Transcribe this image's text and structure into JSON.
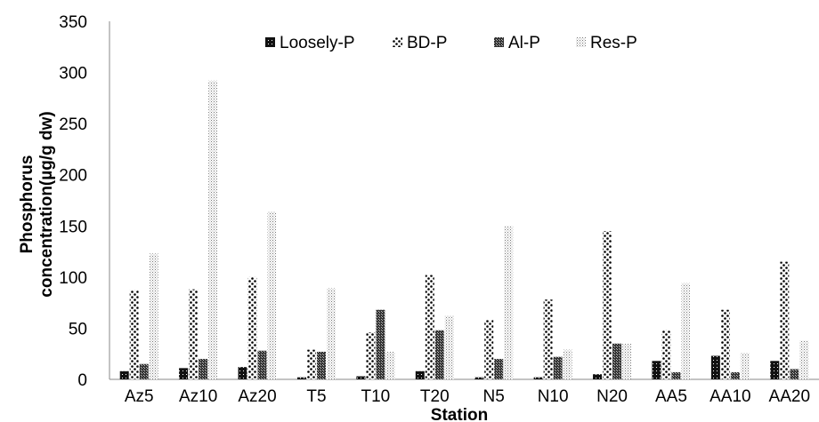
{
  "chart_data": {
    "type": "bar",
    "title": "",
    "xlabel": "Station",
    "ylabel_lines": [
      "Phosphorus",
      "concentration(µg/g dw)"
    ],
    "ylim": [
      0,
      350
    ],
    "yticks": [
      0,
      50,
      100,
      150,
      200,
      250,
      300,
      350
    ],
    "grid": false,
    "legend_position": "top",
    "categories": [
      "Az5",
      "Az10",
      "Az20",
      "T5",
      "T10",
      "T20",
      "N5",
      "N10",
      "N20",
      "AA5",
      "AA10",
      "AA20"
    ],
    "series": [
      {
        "name": "Loosely-P",
        "pattern": "dense-black",
        "values": [
          8,
          11,
          12,
          2,
          3,
          8,
          2,
          2,
          5,
          18,
          23,
          18
        ]
      },
      {
        "name": "BD-P",
        "pattern": "coarse-dots",
        "values": [
          87,
          88,
          100,
          29,
          46,
          102,
          58,
          78,
          145,
          48,
          68,
          115
        ]
      },
      {
        "name": "Al-P",
        "pattern": "checker",
        "values": [
          15,
          20,
          28,
          27,
          68,
          48,
          20,
          22,
          35,
          7,
          7,
          10
        ]
      },
      {
        "name": "Res-P",
        "pattern": "fine-dots",
        "values": [
          123,
          292,
          164,
          89,
          27,
          62,
          150,
          29,
          35,
          94,
          26,
          38
        ]
      }
    ]
  }
}
